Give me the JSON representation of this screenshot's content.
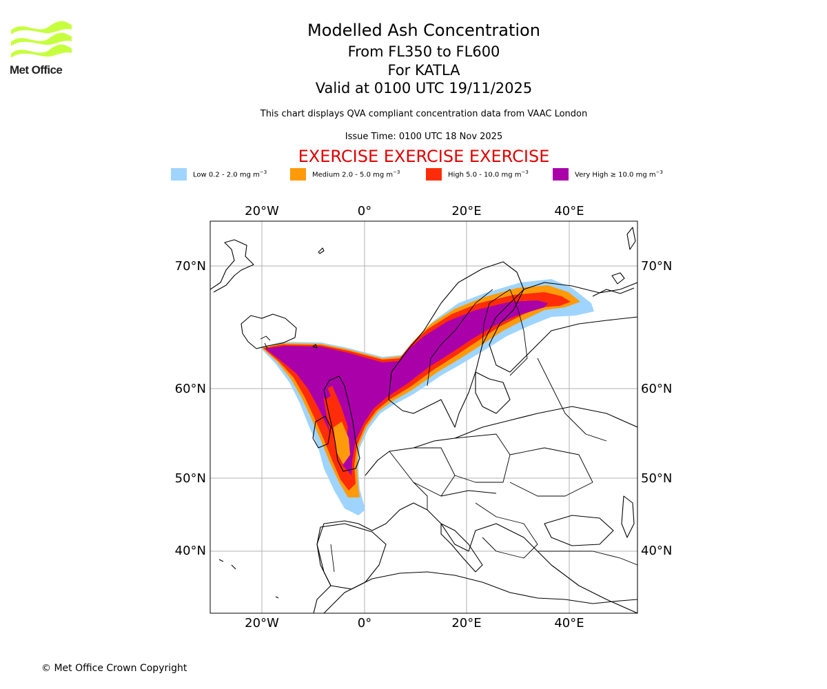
{
  "logo": {
    "text": "Met Office",
    "color": "#c6ff3e"
  },
  "header": {
    "title": "Modelled Ash Concentration",
    "levels": "From FL350 to FL600",
    "volcano": "For KATLA",
    "valid": "Valid at 0100 UTC 19/11/2025",
    "description": "This chart displays QVA compliant concentration data from VAAC London",
    "issue": "Issue Time: 0100 UTC 18 Nov 2025",
    "exercise": "EXERCISE EXERCISE EXERCISE"
  },
  "legend": [
    {
      "label": "Low 0.2 - 2.0 mg m",
      "unit_exp": "−3",
      "color": "#9fd4ff"
    },
    {
      "label": "Medium 2.0 - 5.0 mg m",
      "unit_exp": "−3",
      "color": "#ff9a0a"
    },
    {
      "label": "High 5.0 - 10.0 mg m",
      "unit_exp": "−3",
      "color": "#ff2c0a"
    },
    {
      "label": "Very High ≥ 10.0 mg m",
      "unit_exp": "−3",
      "color": "#aa00aa"
    }
  ],
  "map": {
    "lon_labels": [
      "20°W",
      "0°",
      "20°E",
      "40°E"
    ],
    "lat_labels": [
      "70°N",
      "60°N",
      "50°N",
      "40°N"
    ],
    "gridline_color": "#b0b0b0"
  },
  "footer": {
    "copyright": "© Met Office Crown Copyright"
  }
}
